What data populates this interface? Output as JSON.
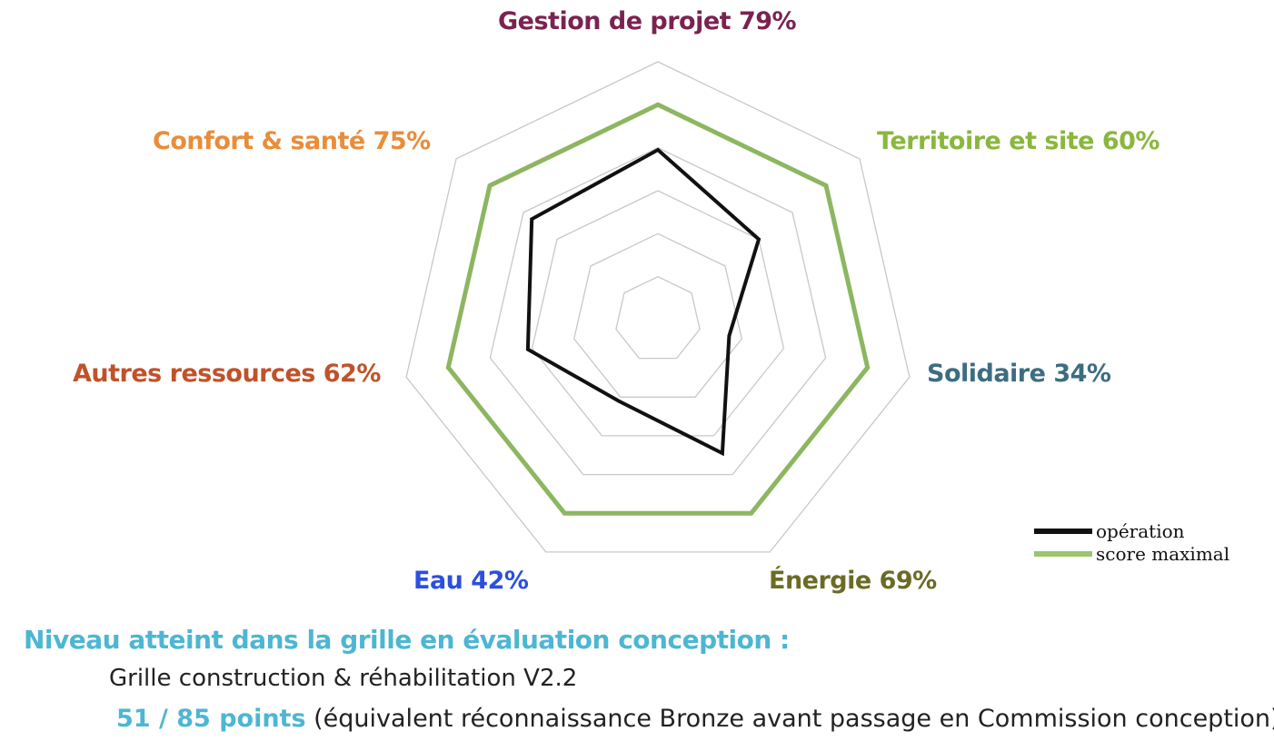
{
  "chart_data": {
    "type": "radar",
    "axes": [
      {
        "name": "Gestion de projet",
        "value_label": "79%",
        "color": "#7a2350"
      },
      {
        "name": "Territoire et site",
        "value_label": "60%",
        "color": "#8ab73c"
      },
      {
        "name": "Solidaire",
        "value_label": "34%",
        "color": "#3c6d82"
      },
      {
        "name": "Énergie",
        "value_label": "69%",
        "color": "#6b6b25"
      },
      {
        "name": "Eau",
        "value_label": "42%",
        "color": "#2b50e0"
      },
      {
        "name": "Autres ressources",
        "value_label": "62%",
        "color": "#c0522a"
      },
      {
        "name": "Confort & santé",
        "value_label": "75%",
        "color": "#e88d3a"
      }
    ],
    "series": [
      {
        "name": "opération",
        "color": "#111111",
        "values": [
          79,
          60,
          34,
          69,
          42,
          62,
          75
        ]
      },
      {
        "name": "score maximal",
        "color": "#8db660",
        "values": [
          100,
          100,
          100,
          100,
          100,
          100,
          100
        ]
      }
    ],
    "rlim": [
      0,
      120
    ],
    "grid_rings": 6,
    "legend": "bottom-right"
  },
  "footer": {
    "title": "Niveau atteint dans la grille en évaluation conception :",
    "grid_version": "Grille construction & réhabilitation V2.2",
    "points": "51 / 85 points",
    "points_note": "(équivalent réconnaissance Bronze avant passage en Commission conception)"
  }
}
